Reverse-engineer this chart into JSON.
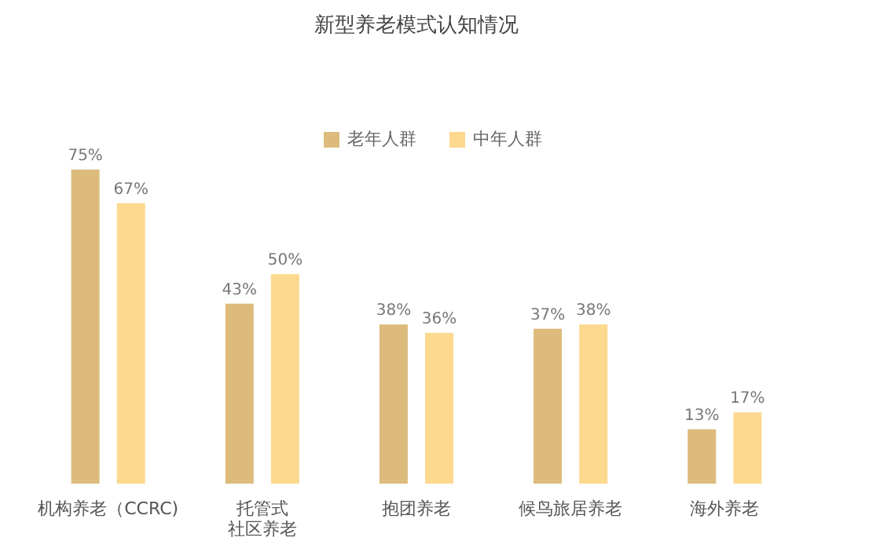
{
  "chart_data": {
    "type": "bar",
    "title": "新型养老模式认知情况",
    "categories": [
      "机构养老（CCRC)",
      "托管式社区养老",
      "抱团养老",
      "候鸟旅居养老",
      "海外养老"
    ],
    "series": [
      {
        "name": "老年人群",
        "color": "#dcbb7c",
        "values": [
          75,
          43,
          38,
          37,
          13
        ],
        "value_labels": [
          "75%",
          "43%",
          "38%",
          "37%",
          "13%"
        ]
      },
      {
        "name": "中年人群",
        "color": "#fdd88f",
        "values": [
          67,
          50,
          36,
          38,
          17
        ],
        "value_labels": [
          "67%",
          "50%",
          "36%",
          "38%",
          "17%"
        ]
      }
    ],
    "tick_labels": "x",
    "grid": false,
    "legend": "top"
  }
}
